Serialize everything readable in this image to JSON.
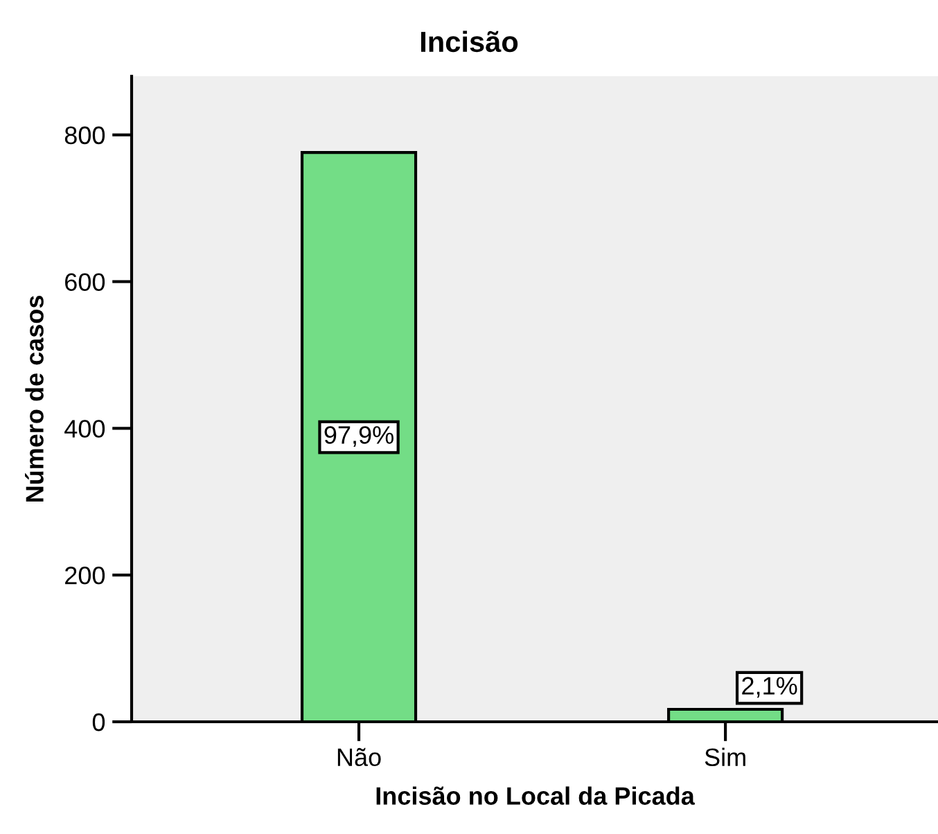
{
  "chart_data": {
    "type": "bar",
    "title": "Incisão",
    "xlabel": "Incisão no Local da Picada",
    "ylabel": "Número de casos",
    "categories": [
      "Não",
      "Sim"
    ],
    "values": [
      776,
      17
    ],
    "annotations": [
      "97,9%",
      "2,1%"
    ],
    "color": "#73dd86",
    "ylim": [
      0,
      880
    ],
    "yticks": [
      0,
      200,
      400,
      600,
      800
    ],
    "grid": false,
    "legend": false
  }
}
